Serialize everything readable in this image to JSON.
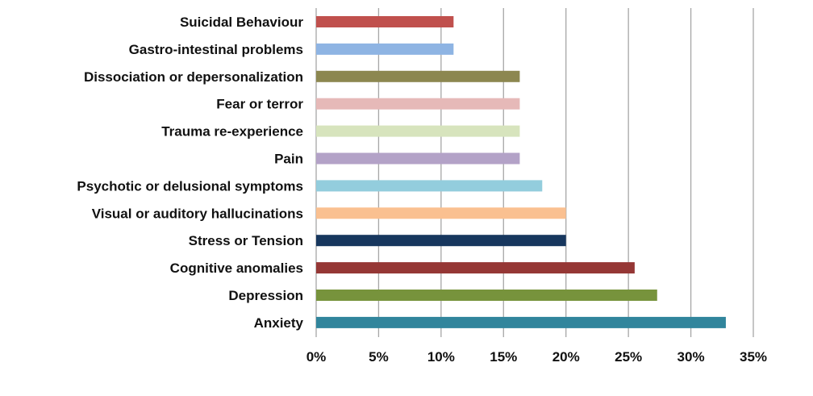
{
  "chart_data": {
    "type": "bar",
    "orientation": "horizontal",
    "categories": [
      "Suicidal Behaviour",
      "Gastro-intestinal problems",
      "Dissociation or depersonalization",
      "Fear or terror",
      "Trauma re-experience",
      "Pain",
      "Psychotic or delusional symptoms",
      "Visual or auditory hallucinations",
      "Stress or Tension",
      "Cognitive anomalies",
      "Depression",
      "Anxiety"
    ],
    "values": [
      11,
      11,
      16.3,
      16.3,
      16.3,
      16.3,
      18.1,
      20,
      20,
      25.5,
      27.3,
      32.8
    ],
    "colors": [
      "#c0504d",
      "#8eb4e3",
      "#8c8750",
      "#e6b9b8",
      "#d7e4bd",
      "#b3a2c7",
      "#93cddd",
      "#fac090",
      "#17375e",
      "#953735",
      "#77933c",
      "#31859c"
    ],
    "xlim": [
      0,
      35
    ],
    "xticks": [
      0,
      5,
      10,
      15,
      20,
      25,
      30,
      35
    ],
    "xtick_labels": [
      "0%",
      "5%",
      "10%",
      "15%",
      "20%",
      "25%",
      "30%",
      "35%"
    ],
    "grid": "vertical",
    "gridline_color": "#a6a6a6",
    "title": "",
    "xlabel": "",
    "ylabel": ""
  }
}
